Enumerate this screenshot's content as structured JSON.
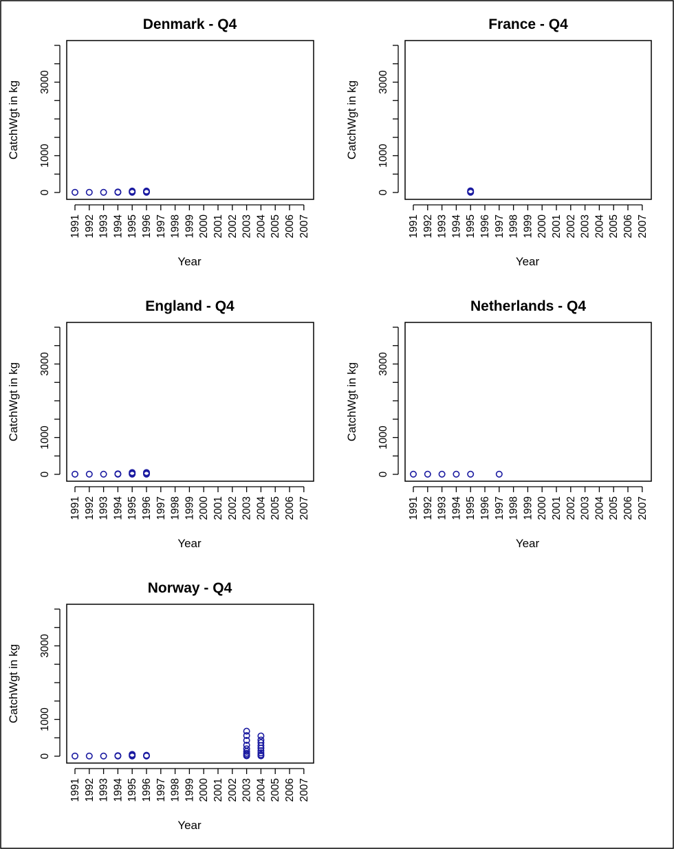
{
  "chart_data": [
    {
      "type": "scatter",
      "title": "Denmark - Q4",
      "xlabel": "Year",
      "ylabel": "CatchWgt in kg",
      "x_categories": [
        "1991",
        "1992",
        "1993",
        "1994",
        "1995",
        "1996",
        "1997",
        "1998",
        "1999",
        "2000",
        "2001",
        "2002",
        "2003",
        "2004",
        "2005",
        "2006",
        "2007"
      ],
      "y_ticks": [
        0,
        1000,
        3000
      ],
      "y_tick_labels": [
        "0",
        "1000",
        "3000"
      ],
      "ylim": [
        0,
        4000
      ],
      "grid": false,
      "legend": "none",
      "points": [
        {
          "x": "1991",
          "y": 5
        },
        {
          "x": "1992",
          "y": 5
        },
        {
          "x": "1993",
          "y": 5
        },
        {
          "x": "1994",
          "y": 5
        },
        {
          "x": "1994",
          "y": 15
        },
        {
          "x": "1995",
          "y": 5
        },
        {
          "x": "1995",
          "y": 20
        },
        {
          "x": "1995",
          "y": 40
        },
        {
          "x": "1996",
          "y": 5
        },
        {
          "x": "1996",
          "y": 20
        },
        {
          "x": "1996",
          "y": 40
        }
      ]
    },
    {
      "type": "scatter",
      "title": "France - Q4",
      "xlabel": "Year",
      "ylabel": "CatchWgt in kg",
      "x_categories": [
        "1991",
        "1992",
        "1993",
        "1994",
        "1995",
        "1996",
        "1997",
        "1998",
        "1999",
        "2000",
        "2001",
        "2002",
        "2003",
        "2004",
        "2005",
        "2006",
        "2007"
      ],
      "y_ticks": [
        0,
        1000,
        3000
      ],
      "y_tick_labels": [
        "0",
        "1000",
        "3000"
      ],
      "ylim": [
        0,
        4000
      ],
      "grid": false,
      "legend": "none",
      "points": [
        {
          "x": "1995",
          "y": 5
        },
        {
          "x": "1995",
          "y": 25
        },
        {
          "x": "1995",
          "y": 45
        }
      ]
    },
    {
      "type": "scatter",
      "title": "England - Q4",
      "xlabel": "Year",
      "ylabel": "CatchWgt in kg",
      "x_categories": [
        "1991",
        "1992",
        "1993",
        "1994",
        "1995",
        "1996",
        "1997",
        "1998",
        "1999",
        "2000",
        "2001",
        "2002",
        "2003",
        "2004",
        "2005",
        "2006",
        "2007"
      ],
      "y_ticks": [
        0,
        1000,
        3000
      ],
      "y_tick_labels": [
        "0",
        "1000",
        "3000"
      ],
      "ylim": [
        0,
        4000
      ],
      "grid": false,
      "legend": "none",
      "points": [
        {
          "x": "1991",
          "y": 5
        },
        {
          "x": "1992",
          "y": 5
        },
        {
          "x": "1993",
          "y": 5
        },
        {
          "x": "1994",
          "y": 5
        },
        {
          "x": "1994",
          "y": 15
        },
        {
          "x": "1995",
          "y": 5
        },
        {
          "x": "1995",
          "y": 25
        },
        {
          "x": "1995",
          "y": 50
        },
        {
          "x": "1996",
          "y": 5
        },
        {
          "x": "1996",
          "y": 25
        },
        {
          "x": "1996",
          "y": 50
        }
      ]
    },
    {
      "type": "scatter",
      "title": "Netherlands - Q4",
      "xlabel": "Year",
      "ylabel": "CatchWgt in kg",
      "x_categories": [
        "1991",
        "1992",
        "1993",
        "1994",
        "1995",
        "1996",
        "1997",
        "1998",
        "1999",
        "2000",
        "2001",
        "2002",
        "2003",
        "2004",
        "2005",
        "2006",
        "2007"
      ],
      "y_ticks": [
        0,
        1000,
        3000
      ],
      "y_tick_labels": [
        "0",
        "1000",
        "3000"
      ],
      "ylim": [
        0,
        4000
      ],
      "grid": false,
      "legend": "none",
      "points": [
        {
          "x": "1991",
          "y": 5
        },
        {
          "x": "1992",
          "y": 5
        },
        {
          "x": "1993",
          "y": 5
        },
        {
          "x": "1994",
          "y": 5
        },
        {
          "x": "1995",
          "y": 5
        },
        {
          "x": "1997",
          "y": 5
        }
      ]
    },
    {
      "type": "scatter",
      "title": "Norway - Q4",
      "xlabel": "Year",
      "ylabel": "CatchWgt in kg",
      "x_categories": [
        "1991",
        "1992",
        "1993",
        "1994",
        "1995",
        "1996",
        "1997",
        "1998",
        "1999",
        "2000",
        "2001",
        "2002",
        "2003",
        "2004",
        "2005",
        "2006",
        "2007"
      ],
      "y_ticks": [
        0,
        1000,
        3000
      ],
      "y_tick_labels": [
        "0",
        "1000",
        "3000"
      ],
      "ylim": [
        0,
        4000
      ],
      "grid": false,
      "legend": "none",
      "points": [
        {
          "x": "1991",
          "y": 5
        },
        {
          "x": "1992",
          "y": 5
        },
        {
          "x": "1993",
          "y": 5
        },
        {
          "x": "1994",
          "y": 5
        },
        {
          "x": "1994",
          "y": 15
        },
        {
          "x": "1995",
          "y": 5
        },
        {
          "x": "1995",
          "y": 25
        },
        {
          "x": "1995",
          "y": 50
        },
        {
          "x": "1996",
          "y": 5
        },
        {
          "x": "1996",
          "y": 25
        },
        {
          "x": "2003",
          "y": 10
        },
        {
          "x": "2003",
          "y": 40
        },
        {
          "x": "2003",
          "y": 80
        },
        {
          "x": "2003",
          "y": 130
        },
        {
          "x": "2003",
          "y": 200
        },
        {
          "x": "2003",
          "y": 300
        },
        {
          "x": "2003",
          "y": 430
        },
        {
          "x": "2003",
          "y": 560
        },
        {
          "x": "2003",
          "y": 680
        },
        {
          "x": "2004",
          "y": 10
        },
        {
          "x": "2004",
          "y": 40
        },
        {
          "x": "2004",
          "y": 90
        },
        {
          "x": "2004",
          "y": 150
        },
        {
          "x": "2004",
          "y": 220
        },
        {
          "x": "2004",
          "y": 290
        },
        {
          "x": "2004",
          "y": 370
        },
        {
          "x": "2004",
          "y": 440
        },
        {
          "x": "2004",
          "y": 550
        }
      ]
    }
  ],
  "colors": {
    "marker": "#1a1aa0",
    "axis": "#000000",
    "border": "#000000",
    "background": "#ffffff"
  }
}
